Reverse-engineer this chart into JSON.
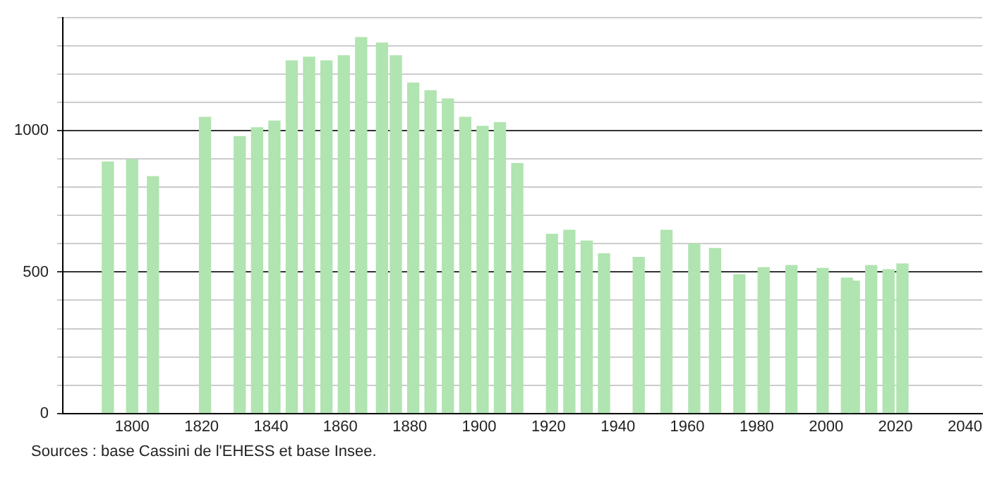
{
  "chart_data": {
    "type": "bar",
    "x": [
      1793,
      1800,
      1806,
      1821,
      1831,
      1836,
      1841,
      1846,
      1851,
      1856,
      1861,
      1866,
      1872,
      1876,
      1881,
      1886,
      1891,
      1896,
      1901,
      1906,
      1911,
      1921,
      1926,
      1931,
      1936,
      1946,
      1954,
      1962,
      1968,
      1975,
      1982,
      1990,
      1999,
      2006,
      2008,
      2013,
      2018,
      2022
    ],
    "values": [
      890,
      898,
      838,
      1048,
      980,
      1011,
      1035,
      1248,
      1261,
      1248,
      1266,
      1330,
      1311,
      1266,
      1169,
      1142,
      1113,
      1048,
      1016,
      1029,
      884,
      634,
      648,
      610,
      565,
      552,
      648,
      600,
      584,
      491,
      516,
      523,
      513,
      479,
      468,
      523,
      508,
      529
    ],
    "color": "#b0e4b0",
    "xlim": [
      1780,
      2045
    ],
    "xticks": [
      1800,
      1820,
      1840,
      1860,
      1880,
      1900,
      1920,
      1940,
      1960,
      1980,
      2000,
      2020,
      2040
    ],
    "ylim": [
      0,
      1400
    ],
    "yticks": [
      0,
      {
        "value": 100,
        "label": null
      },
      {
        "value": 200,
        "label": null
      },
      {
        "value": 300,
        "label": null
      },
      {
        "value": 400,
        "label": null
      },
      500,
      {
        "value": 600,
        "label": null
      },
      {
        "value": 700,
        "label": null
      },
      {
        "value": 800,
        "label": null
      },
      {
        "value": 900,
        "label": null
      },
      1000,
      {
        "value": 1100,
        "label": null
      },
      {
        "value": 1200,
        "label": null
      },
      {
        "value": 1300,
        "label": null
      },
      {
        "value": 1400,
        "label": null
      }
    ],
    "grid": "y",
    "legend": false,
    "annotations": [
      "Sources : base Cassini de l'EHESS et base Insee."
    ]
  }
}
